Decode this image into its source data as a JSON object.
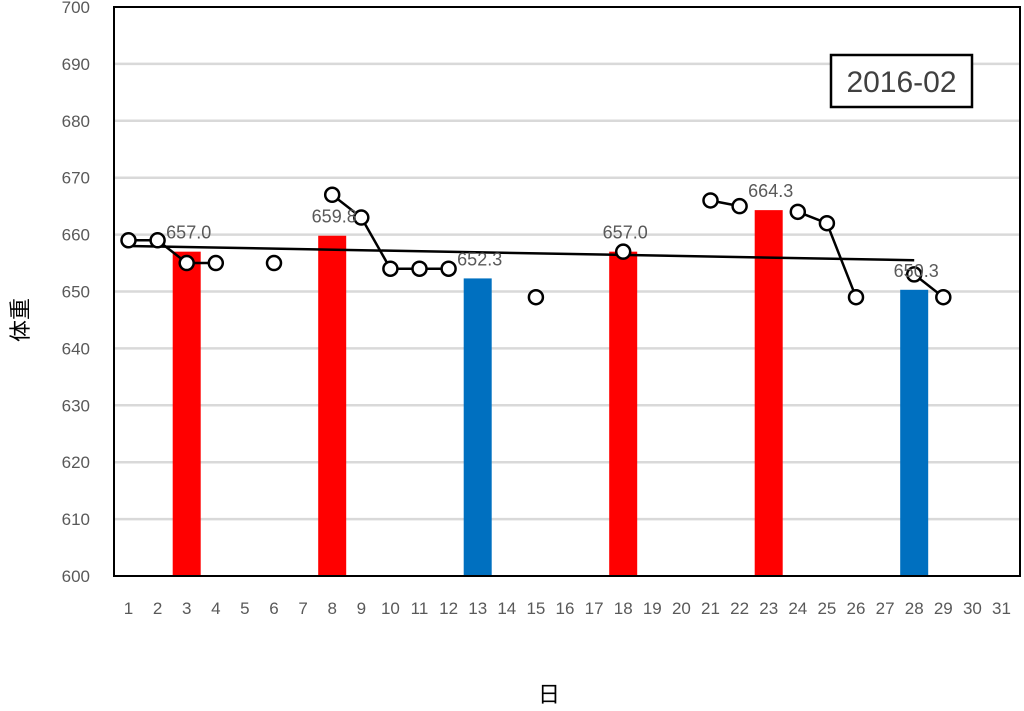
{
  "chart_data": {
    "type": "bar",
    "title": "2016-02",
    "xlabel": "日",
    "ylabel": "体重",
    "ylim": [
      600,
      700
    ],
    "ytick_step": 10,
    "grid": true,
    "x_ticks": [
      1,
      2,
      3,
      4,
      5,
      6,
      7,
      8,
      9,
      10,
      11,
      12,
      13,
      14,
      15,
      16,
      17,
      18,
      19,
      20,
      21,
      22,
      23,
      24,
      25,
      26,
      27,
      28,
      29,
      30,
      31
    ],
    "bars": [
      {
        "x": 3,
        "value": 657.0,
        "label": "657.0",
        "color": "#ff0000"
      },
      {
        "x": 8,
        "value": 659.8,
        "label": "659.8",
        "color": "#ff0000"
      },
      {
        "x": 13,
        "value": 652.3,
        "label": "652.3",
        "color": "#0070c0"
      },
      {
        "x": 18,
        "value": 657.0,
        "label": "657.0",
        "color": "#ff0000"
      },
      {
        "x": 23,
        "value": 664.3,
        "label": "664.3",
        "color": "#ff0000"
      },
      {
        "x": 28,
        "value": 650.3,
        "label": "650.3",
        "color": "#0070c0"
      }
    ],
    "points": [
      {
        "x": 1,
        "y": 659
      },
      {
        "x": 2,
        "y": 659
      },
      {
        "x": 3,
        "y": 655
      },
      {
        "x": 4,
        "y": 655
      },
      {
        "x": 6,
        "y": 655
      },
      {
        "x": 8,
        "y": 667
      },
      {
        "x": 9,
        "y": 663
      },
      {
        "x": 10,
        "y": 654
      },
      {
        "x": 11,
        "y": 654
      },
      {
        "x": 12,
        "y": 654
      },
      {
        "x": 15,
        "y": 649
      },
      {
        "x": 18,
        "y": 657
      },
      {
        "x": 21,
        "y": 666
      },
      {
        "x": 22,
        "y": 665
      },
      {
        "x": 24,
        "y": 664
      },
      {
        "x": 25,
        "y": 662
      },
      {
        "x": 26,
        "y": 649
      },
      {
        "x": 28,
        "y": 653
      },
      {
        "x": 29,
        "y": 649
      }
    ],
    "line_segments": [
      [
        1,
        4
      ],
      [
        8,
        12
      ],
      [
        21,
        22
      ],
      [
        24,
        26
      ],
      [
        28,
        29
      ]
    ],
    "trendline": {
      "x": [
        1,
        28
      ],
      "y": [
        658.0,
        655.5
      ],
      "color": "#000000"
    },
    "colors": {
      "bar_high": "#ff0000",
      "bar_low": "#0070c0",
      "grid": "#d9d9d9",
      "marker_fill": "#ffffff",
      "marker_edge": "#000000"
    }
  }
}
